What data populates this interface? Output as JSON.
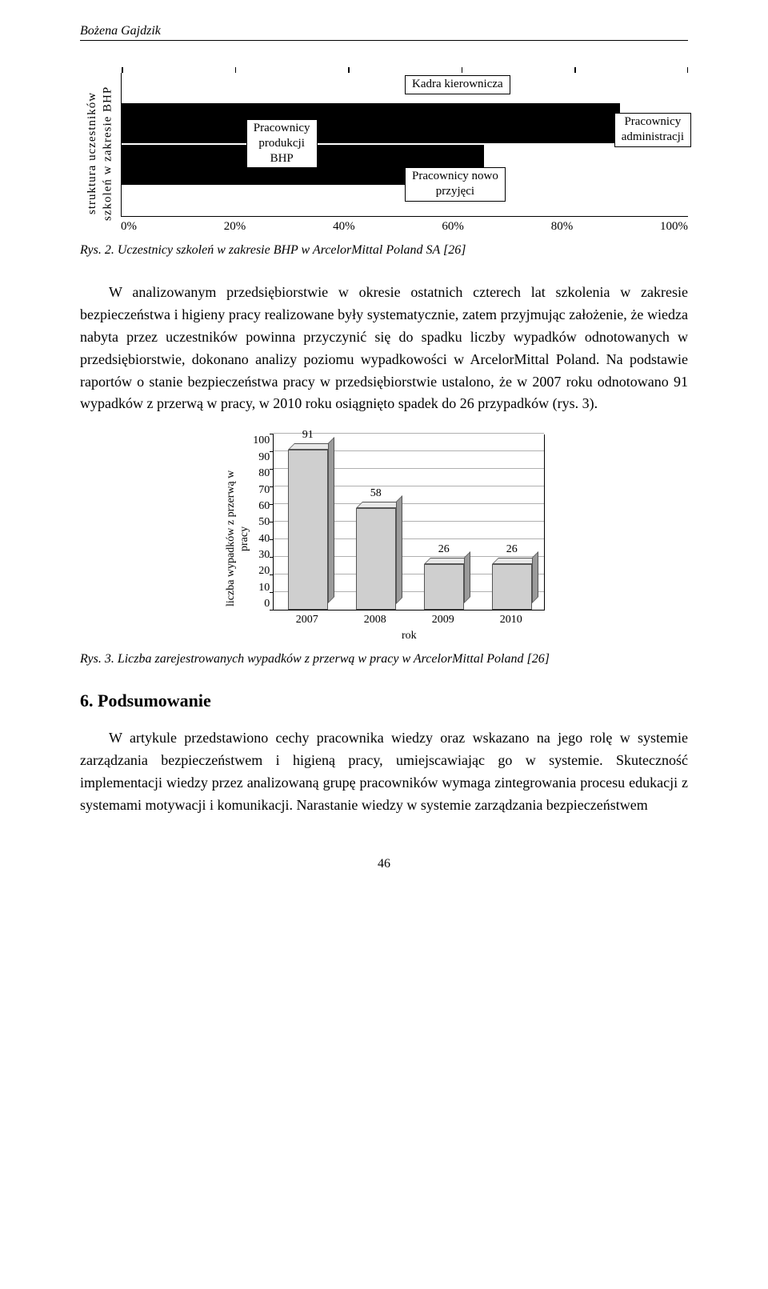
{
  "author": "Bożena Gajdzik",
  "fig1": {
    "type": "stacked-bar-horizontal",
    "ylabel_line1": "struktura uczestników",
    "ylabel_line2": "szkoleń w zakresie BHP",
    "xticks": [
      "0%",
      "20%",
      "40%",
      "60%",
      "80%",
      "100%"
    ],
    "bar_top_pct": 88,
    "bar_bot_pct": 64,
    "callouts": {
      "prod": {
        "l1": "Pracownicy",
        "l2": "produkcji",
        "l3": "BHP"
      },
      "kadra": "Kadra kierownicza",
      "nowo": {
        "l1": "Pracownicy nowo",
        "l2": "przyjęci"
      },
      "admin": {
        "l1": "Pracownicy",
        "l2": "administracji"
      }
    },
    "caption": "Rys. 2. Uczestnicy szkoleń w zakresie BHP w ArcelorMittal Poland SA [26]"
  },
  "para1": "W analizowanym przedsiębiorstwie w okresie ostatnich czterech lat szkolenia w zakresie bezpieczeństwa i higieny pracy realizowane były systematycznie, zatem przyjmując założenie, że wiedza nabyta przez uczestników powinna przyczynić się do spadku liczby wypadków odnotowanych w przedsiębiorstwie, dokonano analizy poziomu wypadkowości w ArcelorMittal Poland. Na podstawie raportów o stanie bezpieczeństwa pracy w przedsiębiorstwie ustalono, że w 2007 roku odnotowano 91 wypadków z przerwą w pracy, w 2010 roku osiągnięto spadek do 26 przypadków (rys. 3).",
  "fig3": {
    "type": "bar",
    "ylabel_line1": "liczba wypadków z przerwą w",
    "ylabel_line2": "pracy",
    "ylim": [
      0,
      100
    ],
    "yticks": [
      "100",
      "90",
      "80",
      "70",
      "60",
      "50",
      "40",
      "30",
      "20",
      "10",
      "0"
    ],
    "categories": [
      "2007",
      "2008",
      "2009",
      "2010"
    ],
    "values": [
      91,
      58,
      26,
      26
    ],
    "bar_fill": "#cfcfcf",
    "bar_side": "#9a9a9a",
    "bar_top_shade": "#e8e8e8",
    "xtitle": "rok",
    "caption": "Rys. 3. Liczba zarejestrowanych wypadków z przerwą w pracy w ArcelorMittal Poland [26]"
  },
  "heading": "6. Podsumowanie",
  "para2": "W artykule przedstawiono cechy pracownika wiedzy oraz wskazano na jego rolę w systemie zarządzania bezpieczeństwem i higieną pracy, umiejscawiając go w systemie. Skuteczność implementacji wiedzy przez analizowaną grupę pracowników wymaga zintegrowania procesu edukacji z systemami motywacji i komunikacji. Narastanie wiedzy w systemie zarządzania bezpieczeństwem",
  "page": "46"
}
